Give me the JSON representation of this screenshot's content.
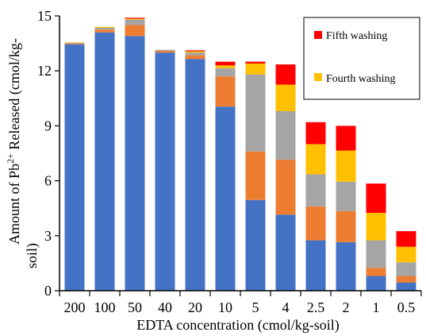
{
  "chart_data": {
    "type": "bar",
    "stacked": true,
    "categories": [
      "200",
      "100",
      "50",
      "40",
      "20",
      "10",
      "5",
      "4",
      "2.5",
      "2",
      "1",
      "0.5"
    ],
    "series": [
      {
        "key": "w1",
        "values": [
          13.45,
          14.1,
          13.9,
          13.0,
          12.65,
          10.05,
          4.95,
          4.15,
          2.75,
          2.65,
          0.8,
          0.45
        ],
        "color": "#4472C4"
      },
      {
        "key": "w2",
        "values": [
          0.05,
          0.15,
          0.6,
          0.1,
          0.2,
          1.65,
          2.65,
          3.0,
          1.85,
          1.7,
          0.45,
          0.35
        ],
        "color": "#ED7D31"
      },
      {
        "key": "w3",
        "values": [
          0.03,
          0.1,
          0.3,
          0.05,
          0.15,
          0.45,
          4.2,
          2.65,
          1.75,
          1.6,
          1.5,
          0.75
        ],
        "color": "#A5A5A5"
      },
      {
        "name": "Fourth washing",
        "values": [
          0.02,
          0.05,
          0.05,
          0.0,
          0.07,
          0.15,
          0.6,
          1.45,
          1.65,
          1.7,
          1.5,
          0.85
        ],
        "color": "#FFC000"
      },
      {
        "name": "Fifth washing",
        "values": [
          0.0,
          0.0,
          0.05,
          0.0,
          0.05,
          0.2,
          0.1,
          1.1,
          1.2,
          1.35,
          1.6,
          0.85
        ],
        "color": "#FF0000"
      }
    ],
    "xlabel": "EDTA concentration (cmol/kg-soil)",
    "ylabel_parts": {
      "pre": "Amount of Pb",
      "sup": "2+",
      "post1": " Released (cmol/kg-",
      "post2": "soil)"
    },
    "ylim": [
      0,
      15
    ],
    "yticks": [
      "0",
      "3",
      "6",
      "9",
      "12",
      "15"
    ],
    "grid": false,
    "legend_position": "top-right"
  }
}
